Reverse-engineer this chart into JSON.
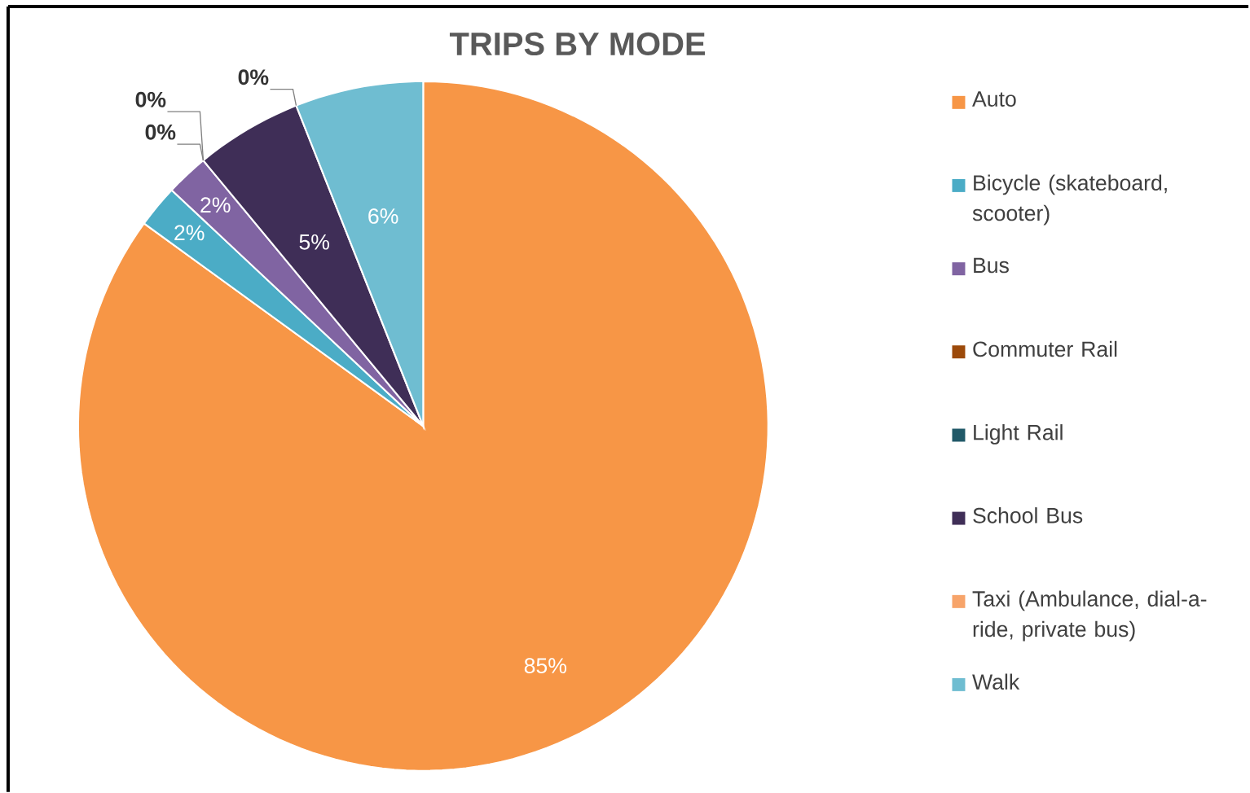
{
  "chart_data": {
    "type": "pie",
    "title": "TRIPS BY MODE",
    "categories": [
      "Auto",
      "Bicycle (skateboard, scooter)",
      "Bus",
      "Commuter Rail",
      "Light Rail",
      "School Bus",
      "Taxi (Ambulance, dial-a-ride, private bus)",
      "Walk"
    ],
    "values": [
      85,
      2,
      2,
      0,
      0,
      5,
      0,
      6
    ],
    "value_labels": [
      "85%",
      "2%",
      "2%",
      "0%",
      "0%",
      "5%",
      "0%",
      "6%"
    ],
    "colors": [
      "#f79646",
      "#4bacc6",
      "#8064a2",
      "#9c4a0a",
      "#215968",
      "#3f2e57",
      "#f7a46a",
      "#6fbdd1"
    ],
    "legend": "right"
  }
}
